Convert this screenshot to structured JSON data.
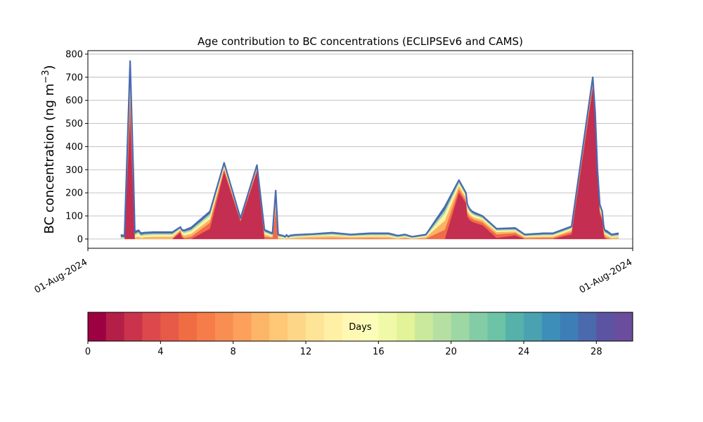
{
  "chart_data": {
    "type": "area",
    "title": "Age contribution to BC concentrations (ECLIPSEv6 and CAMS)",
    "ylabel": "BC concentration (ng m",
    "ylabel_sup": "−3",
    "ylabel_close": ")",
    "xlabel": "",
    "ylim": [
      -40,
      815
    ],
    "yticks": [
      0,
      100,
      200,
      300,
      400,
      500,
      600,
      700,
      800
    ],
    "xticks": [
      "01-Aug-2024",
      "01-Aug-2024"
    ],
    "grid": "horizontal",
    "x_note": "x values are positions along the plotted period (0 = start, 100 = end)",
    "x": [
      3,
      3.8,
      5.0,
      5.7,
      6.0,
      6.3,
      6.8,
      7.3,
      8,
      10,
      14,
      15.7,
      16,
      16.5,
      18,
      22,
      25,
      28.5,
      32,
      33.6,
      35.3,
      36,
      36.5,
      37.5,
      38,
      38.3,
      38.7,
      39,
      40,
      44,
      48,
      52,
      56,
      60,
      62,
      63.5,
      65,
      68,
      72,
      75,
      76.5,
      76.8,
      77.3,
      77.8,
      78.3,
      80,
      83,
      87,
      89,
      93,
      95,
      99,
      103.5,
      104,
      104.5,
      105,
      105.5,
      105.8,
      106,
      106.5,
      107.5,
      109
    ],
    "total": [
      18,
      15,
      770,
      280,
      30,
      35,
      38,
      25,
      28,
      30,
      30,
      52,
      40,
      38,
      50,
      120,
      330,
      90,
      320,
      40,
      25,
      210,
      20,
      15,
      10,
      18,
      10,
      15,
      18,
      22,
      28,
      20,
      25,
      25,
      15,
      20,
      10,
      20,
      140,
      255,
      200,
      150,
      130,
      120,
      115,
      100,
      45,
      48,
      20,
      25,
      25,
      55,
      700,
      550,
      300,
      150,
      120,
      60,
      40,
      35,
      20,
      25
    ],
    "age_layers": [
      {
        "days": 2,
        "color": "#c42e50",
        "values": [
          0,
          0,
          520,
          160,
          0,
          0,
          0,
          0,
          0,
          0,
          0,
          28,
          8,
          0,
          0,
          45,
          290,
          75,
          290,
          0,
          0,
          0,
          0,
          0,
          0,
          0,
          0,
          0,
          0,
          0,
          0,
          0,
          0,
          0,
          0,
          0,
          0,
          0,
          0,
          200,
          155,
          95,
          82,
          75,
          70,
          60,
          5,
          15,
          0,
          0,
          0,
          20,
          650,
          500,
          260,
          110,
          80,
          25,
          5,
          0,
          0,
          0
        ]
      },
      {
        "days": 6,
        "color": "#f06b48",
        "values": [
          0,
          0,
          600,
          200,
          0,
          0,
          0,
          0,
          0,
          0,
          0,
          35,
          15,
          5,
          10,
          70,
          300,
          80,
          300,
          10,
          5,
          120,
          0,
          0,
          0,
          0,
          0,
          0,
          0,
          2,
          3,
          2,
          3,
          2,
          0,
          2,
          0,
          2,
          40,
          215,
          165,
          110,
          95,
          88,
          82,
          72,
          20,
          25,
          3,
          5,
          5,
          30,
          665,
          515,
          270,
          120,
          88,
          35,
          12,
          5,
          0,
          0
        ]
      },
      {
        "days": 10,
        "color": "#fdb262",
        "values": [
          0,
          0,
          650,
          225,
          5,
          8,
          10,
          5,
          8,
          10,
          10,
          40,
          22,
          15,
          22,
          85,
          308,
          83,
          305,
          20,
          10,
          160,
          5,
          3,
          2,
          5,
          2,
          4,
          6,
          10,
          12,
          8,
          10,
          10,
          3,
          8,
          2,
          8,
          80,
          228,
          178,
          122,
          106,
          98,
          92,
          82,
          30,
          32,
          8,
          10,
          10,
          38,
          678,
          525,
          280,
          128,
          96,
          42,
          20,
          15,
          5,
          8
        ]
      },
      {
        "days": 16,
        "color": "#fcf3a8",
        "values": [
          5,
          3,
          700,
          250,
          15,
          20,
          24,
          12,
          16,
          18,
          18,
          45,
          30,
          25,
          35,
          100,
          317,
          86,
          311,
          28,
          15,
          185,
          10,
          8,
          5,
          10,
          5,
          8,
          10,
          14,
          18,
          12,
          16,
          16,
          7,
          12,
          5,
          12,
          110,
          240,
          188,
          133,
          117,
          108,
          102,
          90,
          36,
          38,
          12,
          16,
          16,
          45,
          688,
          535,
          288,
          137,
          105,
          50,
          27,
          22,
          10,
          14
        ]
      },
      {
        "days": 22,
        "color": "#a3d9a4",
        "values": [
          10,
          8,
          740,
          265,
          22,
          27,
          31,
          18,
          22,
          24,
          24,
          48,
          35,
          32,
          42,
          110,
          324,
          88,
          315,
          34,
          20,
          198,
          15,
          11,
          7,
          14,
          7,
          11,
          14,
          18,
          23,
          16,
          20,
          20,
          11,
          16,
          7,
          16,
          125,
          248,
          194,
          142,
          124,
          114,
          108,
          95,
          41,
          43,
          16,
          20,
          20,
          50,
          695,
          543,
          294,
          144,
          112,
          55,
          33,
          28,
          15,
          19
        ]
      },
      {
        "days": 30,
        "color": "#4a6ab2",
        "values": [
          18,
          15,
          770,
          280,
          30,
          35,
          38,
          25,
          28,
          30,
          30,
          52,
          40,
          38,
          50,
          120,
          330,
          90,
          320,
          40,
          25,
          210,
          20,
          15,
          10,
          18,
          10,
          15,
          18,
          22,
          28,
          20,
          25,
          25,
          15,
          20,
          10,
          20,
          140,
          255,
          200,
          150,
          130,
          120,
          115,
          100,
          45,
          48,
          20,
          25,
          25,
          55,
          700,
          550,
          300,
          150,
          120,
          60,
          40,
          35,
          20,
          25
        ]
      }
    ],
    "colorbar": {
      "label": "Days",
      "min": 0,
      "max": 30,
      "ticks": [
        0,
        4,
        8,
        12,
        16,
        20,
        24,
        28
      ],
      "colors": [
        "#9e0142",
        "#b41f48",
        "#cb334c",
        "#dc494c",
        "#e75a47",
        "#f06d43",
        "#f67c4a",
        "#f98e52",
        "#fca05c",
        "#fdb567",
        "#fec877",
        "#fed687",
        "#fee496",
        "#fff0a6",
        "#fef8b4",
        "#fbfdb8",
        "#f0f9a8",
        "#e2f398",
        "#cbe99d",
        "#b6e0a3",
        "#9dd7a4",
        "#83cca5",
        "#6cc3a5",
        "#55b1aa",
        "#4aa2b1",
        "#3d8fb8",
        "#3d7eb7",
        "#4b69ad",
        "#5d53a3",
        "#6a4d9c"
      ]
    }
  }
}
